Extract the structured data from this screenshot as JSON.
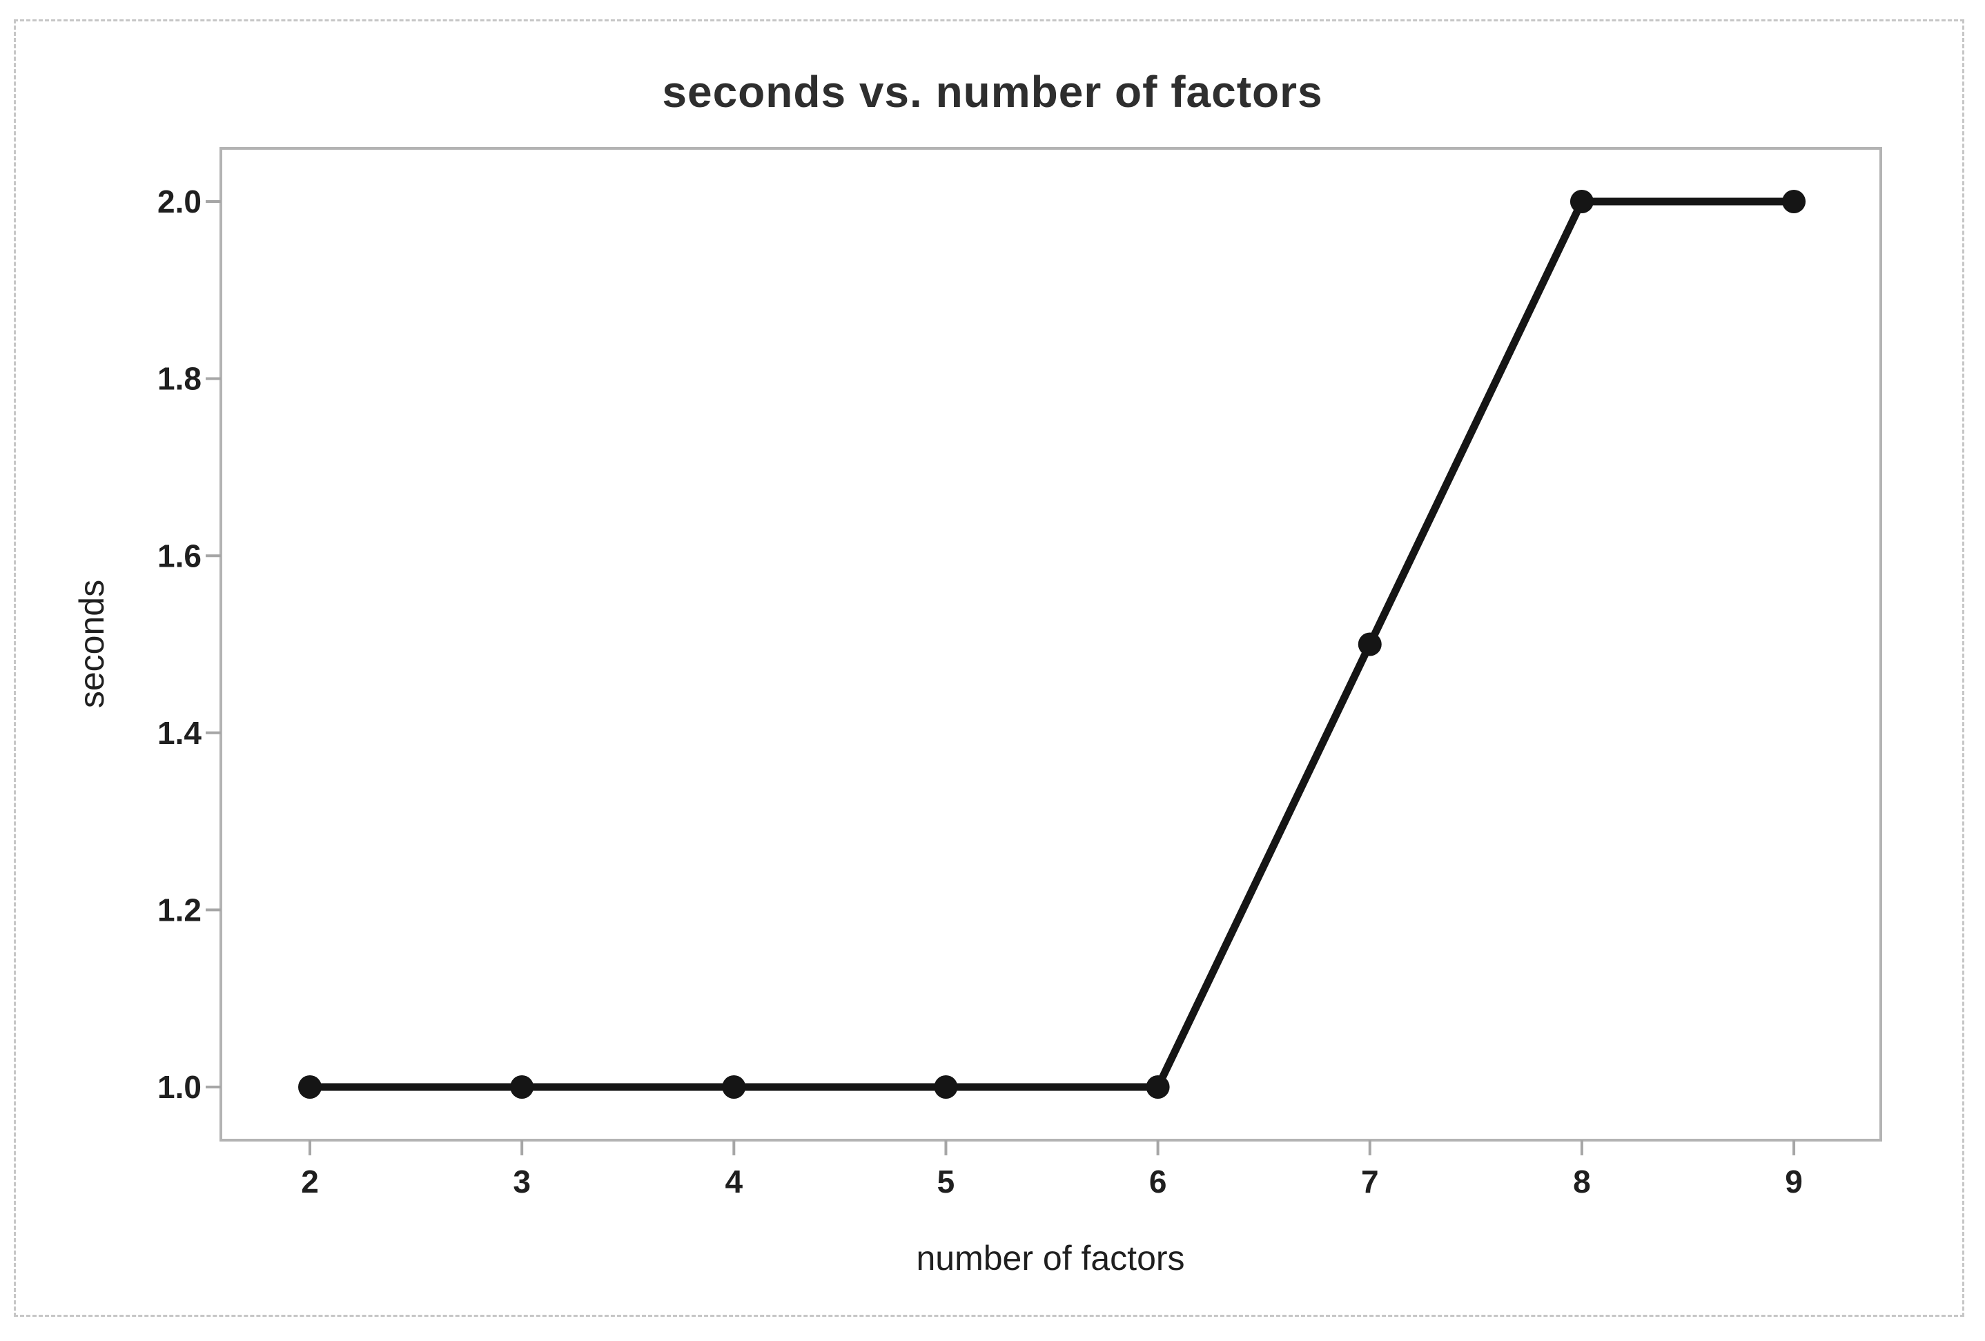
{
  "chart_data": {
    "type": "line",
    "title": "seconds vs. number of factors",
    "xlabel": "number of factors",
    "ylabel": "seconds",
    "x": [
      2,
      3,
      4,
      5,
      6,
      7,
      8,
      9
    ],
    "series": [
      {
        "name": "seconds",
        "values": [
          1.0,
          1.0,
          1.0,
          1.0,
          1.0,
          1.5,
          2.0,
          2.0
        ]
      }
    ],
    "xticks": {
      "values": [
        2,
        3,
        4,
        5,
        6,
        7,
        8,
        9
      ],
      "labels": [
        "2",
        "3",
        "4",
        "5",
        "6",
        "7",
        "8",
        "9"
      ]
    },
    "yticks": {
      "values": [
        1.0,
        1.2,
        1.4,
        1.6,
        1.8,
        2.0
      ],
      "labels": [
        "1.0",
        "1.2",
        "1.4",
        "1.6",
        "1.8",
        "2.0"
      ]
    },
    "xlim": [
      1.58,
      9.41
    ],
    "ylim": [
      0.94,
      2.06
    ],
    "grid": false,
    "legend_position": "none",
    "marker": "filled-circle",
    "colors": {
      "line": "#151515",
      "marker": "#151515",
      "frame": "#b3b3b3",
      "tick": "#a6a6a6",
      "tick_label": "#1f1f1f",
      "axis_label": "#1f1f1f",
      "title": "#2e2e2e",
      "figure_border": "#c6c6c6",
      "background": "#ffffff"
    }
  }
}
